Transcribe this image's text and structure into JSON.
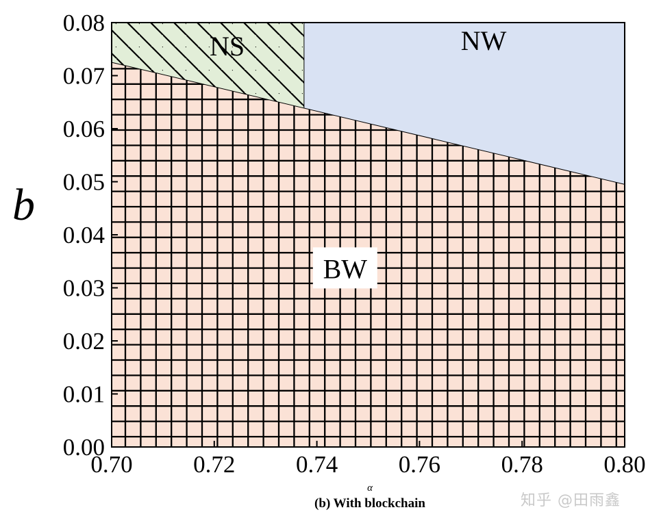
{
  "chart_data": {
    "type": "area",
    "title": "",
    "subtitle": "(b) With blockchain",
    "xlabel": "α",
    "ylabel": "b",
    "xlim": [
      0.7,
      0.8
    ],
    "ylim": [
      0.0,
      0.08
    ],
    "xticks": [
      "0.70",
      "0.72",
      "0.74",
      "0.76",
      "0.78",
      "0.80"
    ],
    "yticks": [
      "0.00",
      "0.01",
      "0.02",
      "0.03",
      "0.04",
      "0.05",
      "0.06",
      "0.07",
      "0.08"
    ],
    "grid": false,
    "boundaries": {
      "NS_NW_divider_x": 0.7375,
      "upper_line": {
        "x": [
          0.7,
          0.8
        ],
        "y": [
          0.0725,
          0.0495
        ]
      }
    },
    "regions": [
      {
        "label": "NS",
        "fill": "#e2eed8",
        "hatch": "diagonal",
        "description_points": {
          "x": [
            0.7,
            0.7375
          ],
          "y_top": 0.08
        }
      },
      {
        "label": "NW",
        "fill": "#d9e2f3",
        "hatch": "none"
      },
      {
        "label": "BW",
        "fill": "#fbe2d6",
        "hatch": "grid"
      }
    ]
  },
  "watermark": "知乎 @田雨鑫"
}
